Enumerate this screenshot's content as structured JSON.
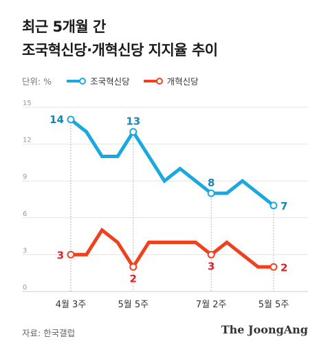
{
  "title_line1": "최근 5개월 간",
  "title_line2": "조국혁신당·개혁신당 지지율 추이",
  "unit_label": "단위: %",
  "source_label": "자료: 한국갤럽",
  "logo_text": "The JoongAng",
  "colors": {
    "series1": "#1aa9df",
    "series2": "#f0401e",
    "label1": "#1a84b8",
    "label2": "#d8232a"
  },
  "chart_data": {
    "type": "line",
    "ylim": [
      0,
      15
    ],
    "yticks": [
      0,
      3,
      6,
      9,
      12,
      15
    ],
    "x_count": 14,
    "xtick_labels": [
      {
        "index": 0,
        "label": "4월 3주"
      },
      {
        "index": 4,
        "label": "5월 5주"
      },
      {
        "index": 9,
        "label": "7월 2주"
      },
      {
        "index": 13,
        "label": "5월 5주"
      }
    ],
    "series": [
      {
        "name": "조국혁신당",
        "values": [
          14,
          13,
          11,
          11,
          13,
          11,
          9,
          10,
          9,
          8,
          8,
          9,
          8,
          7
        ]
      },
      {
        "name": "개혁신당",
        "values": [
          3,
          3,
          5,
          4,
          2,
          4,
          4,
          4,
          4,
          3,
          4,
          3,
          2,
          2
        ]
      }
    ],
    "highlight_indices": [
      0,
      4,
      9,
      13
    ],
    "grid": "horizontal",
    "legend": "top-left"
  }
}
